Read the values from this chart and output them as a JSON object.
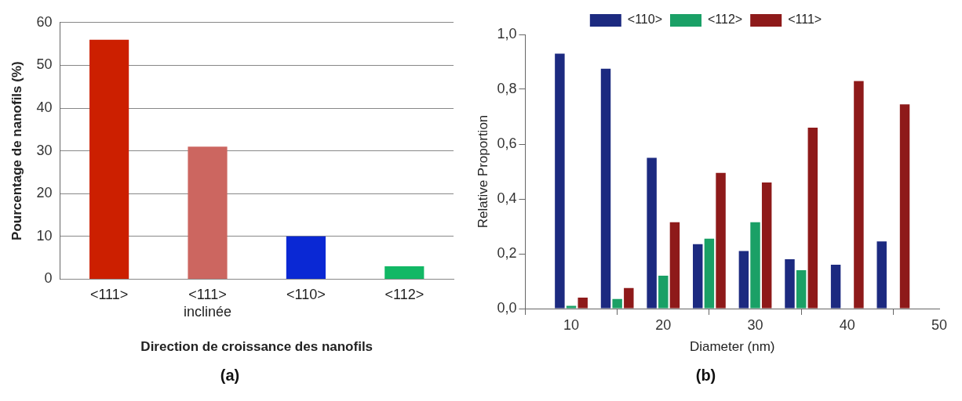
{
  "chart_data": [
    {
      "type": "bar",
      "title": "(a)",
      "xlabel": "Direction de croissance des nanofils",
      "ylabel": "Pourcentage de nanofils (%)",
      "categories": [
        "<111>",
        "<111> inclinée",
        "<110>",
        "<112>"
      ],
      "values": [
        56,
        31,
        10,
        3
      ],
      "colors": [
        "#cc1f00",
        "#cc6660",
        "#0a28d4",
        "#12b865"
      ],
      "ylim": [
        0,
        60
      ],
      "yticks": [
        0,
        10,
        20,
        30,
        40,
        50,
        60
      ],
      "grid": "y",
      "legend": false
    },
    {
      "type": "bar",
      "title": "(b)",
      "xlabel": "Diameter (nm)",
      "ylabel": "Relative Proportion",
      "x": [
        10,
        15,
        20,
        25,
        30,
        35,
        40,
        45
      ],
      "series": [
        {
          "name": "<110>",
          "color": "#1c2a80",
          "values": [
            0.93,
            0.875,
            0.55,
            0.235,
            0.21,
            0.18,
            0.16,
            0.245
          ]
        },
        {
          "name": "<112>",
          "color": "#1aa066",
          "values": [
            0.01,
            0.035,
            0.12,
            0.255,
            0.315,
            0.14,
            null,
            null
          ]
        },
        {
          "name": "<111>",
          "color": "#8e1a1a",
          "values": [
            0.04,
            0.075,
            0.315,
            0.495,
            0.46,
            0.66,
            0.83,
            0.745
          ]
        }
      ],
      "xlim": [
        5,
        50
      ],
      "xticks": [
        10,
        20,
        30,
        40,
        50
      ],
      "ylim": [
        0,
        1
      ],
      "yticks": [
        {
          "value": 0,
          "label": "0,0"
        },
        {
          "value": 0.2,
          "label": "0,2"
        },
        {
          "value": 0.4,
          "label": "0,4"
        },
        {
          "value": 0.6,
          "label": "0,6"
        },
        {
          "value": 0.8,
          "label": "0,8"
        },
        {
          "value": 1,
          "label": "1,0"
        }
      ],
      "grid": false,
      "legend": "top"
    }
  ]
}
